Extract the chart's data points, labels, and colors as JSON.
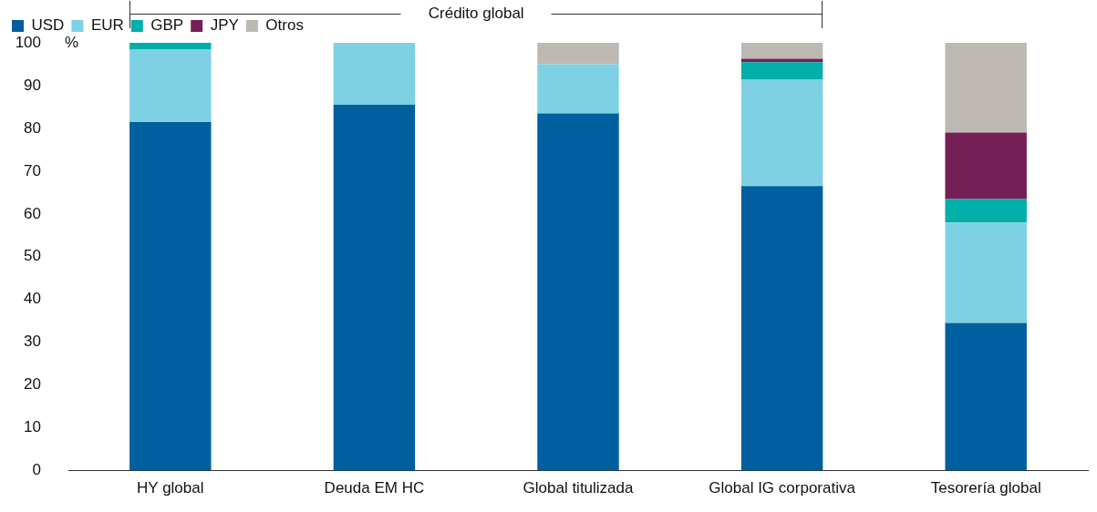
{
  "chart_data": {
    "type": "bar",
    "stacked": true,
    "categories": [
      "HY global",
      "Deuda EM HC",
      "Global titulizada",
      "Global IG corporativa",
      "Tesorería global"
    ],
    "series": [
      {
        "name": "USD",
        "color": "#005f9e",
        "values": [
          81.5,
          85.5,
          83.5,
          66.5,
          34.5
        ]
      },
      {
        "name": "EUR",
        "color": "#7dd1e3",
        "values": [
          17,
          14.5,
          11.5,
          25,
          23.5
        ]
      },
      {
        "name": "GBP",
        "color": "#00aeaa",
        "values": [
          1.5,
          null,
          null,
          4,
          5.5
        ]
      },
      {
        "name": "JPY",
        "color": "#741f55",
        "values": [
          null,
          null,
          null,
          0.8,
          15.5
        ]
      },
      {
        "name": "Otros",
        "color": "#beb8b3",
        "values": [
          null,
          null,
          5,
          3.7,
          21
        ]
      }
    ],
    "ylabel": "%",
    "ylim": [
      0,
      100
    ],
    "yticks": [
      0,
      10,
      20,
      30,
      40,
      50,
      60,
      70,
      80,
      90,
      100
    ],
    "grid": false,
    "legend": "top left",
    "annotations": [
      "Crédito global"
    ]
  }
}
